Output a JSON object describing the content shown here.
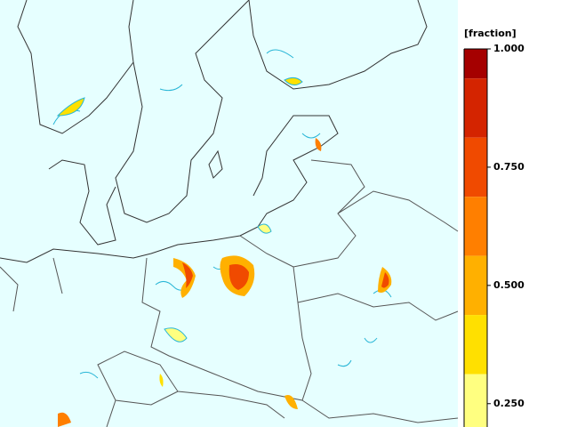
{
  "legend": {
    "title": "[fraction]",
    "bounds": [
      1,
      0.9375,
      0.8125,
      0.6875,
      0.5625,
      0.4375,
      0.3125,
      0.1875
    ],
    "colors": [
      "#a50000",
      "#d42400",
      "#f04a00",
      "#ff7f00",
      "#ffb000",
      "#ffe000",
      "#ffff80"
    ],
    "ticks": [
      {
        "value": 1,
        "label": "1.000"
      },
      {
        "value": 0.75,
        "label": "0.750"
      },
      {
        "value": 0.5,
        "label": "0.500"
      },
      {
        "value": 0.25,
        "label": "0.250"
      }
    ]
  }
}
